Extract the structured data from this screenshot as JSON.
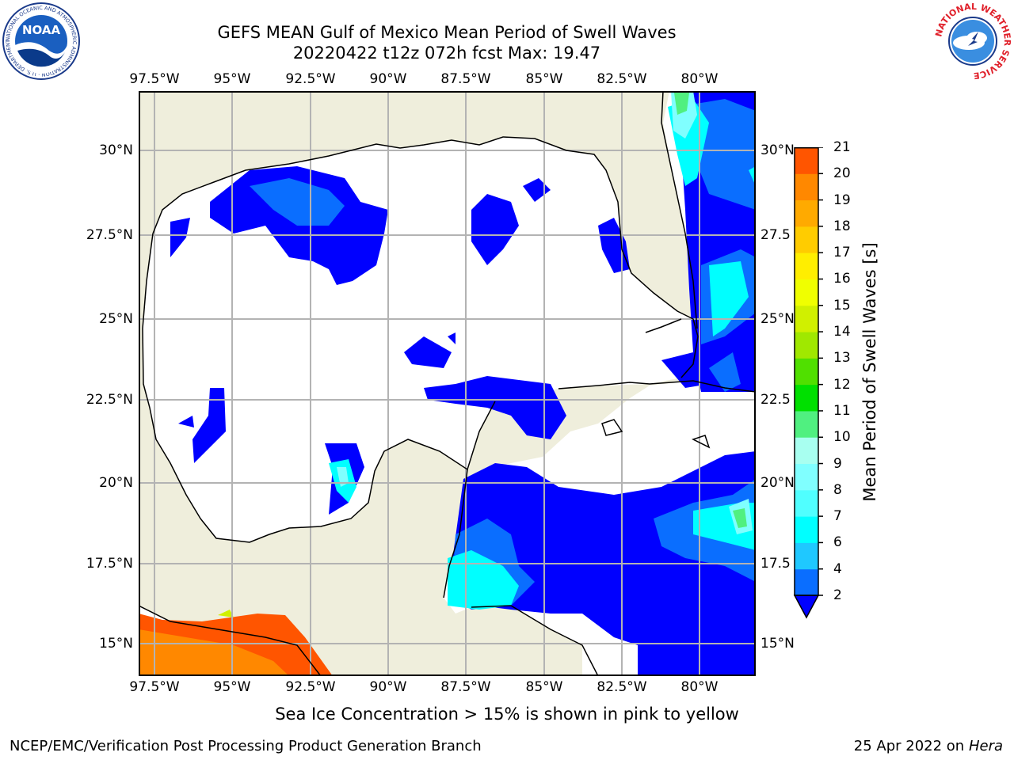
{
  "title": {
    "line1": "GEFS MEAN Gulf of Mexico Mean Period of Swell Waves",
    "line2": "20220422 t12z 072h fcst   Max: 19.47"
  },
  "map": {
    "lon_ticks": [
      "97.5°W",
      "95°W",
      "92.5°W",
      "90°W",
      "87.5°W",
      "85°W",
      "82.5°W",
      "80°W"
    ],
    "lat_ticks_left": [
      "30°N",
      "27.5°N",
      "25°N",
      "22.5°N",
      "20°N",
      "17.5°N",
      "15°N"
    ],
    "lat_ticks_right": [
      "30°N",
      "27.5",
      "25°N",
      "22.5",
      "20°N",
      "17.5",
      "15°N"
    ],
    "colors": {
      "land": "#efeedc",
      "ocean": "#ffffff",
      "grid": "#b3b3b3",
      "coast": "#000000"
    }
  },
  "colorbar": {
    "label": "Mean Period of Swell Waves [s]",
    "ticks": [
      "2",
      "4",
      "6",
      "7",
      "8",
      "9",
      "10",
      "11",
      "12",
      "13",
      "14",
      "15",
      "16",
      "17",
      "18",
      "19",
      "20",
      "21"
    ],
    "colors": [
      "#0a6eff",
      "#1fc8ff",
      "#00ffff",
      "#50ffff",
      "#80ffff",
      "#a8fff0",
      "#50f080",
      "#00e000",
      "#50e000",
      "#a0e800",
      "#d0f000",
      "#f0ff00",
      "#ffee00",
      "#ffcc00",
      "#ffaa00",
      "#ff8800",
      "#ff5500",
      "#ff3300",
      "#ff0000"
    ],
    "under_color": "#0000ff"
  },
  "subtitle": "Sea Ice Concentration > 15% is shown in pink to yellow",
  "footer": {
    "left": "NCEP/EMC/Verification Post Processing Product Generation Branch",
    "date": "25 Apr 2022 on ",
    "machine": "Hera"
  },
  "logos": {
    "noaa": "NOAA",
    "noaa_ring": "NATIONAL OCEANIC AND ATMOSPHERIC ADMINISTRATION · U.S. DEPARTMENT OF COMMERCE ·",
    "nws_ring": "NATIONAL WEATHER SERVICE"
  }
}
